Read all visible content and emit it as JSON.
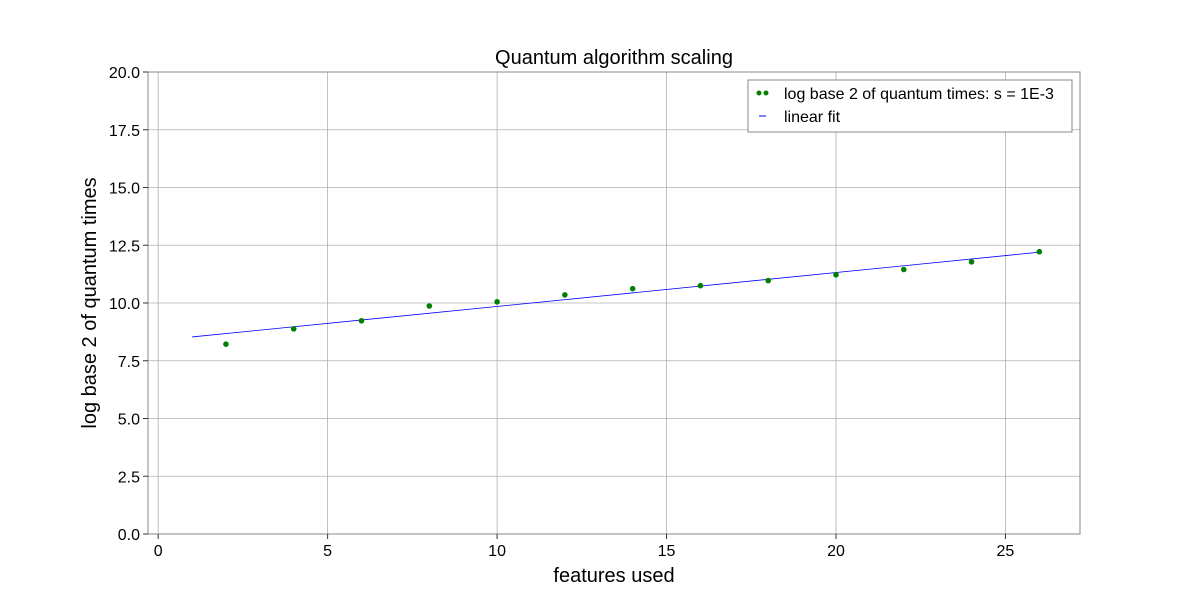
{
  "chart_data": {
    "type": "scatter",
    "title": "Quantum algorithm scaling",
    "xlabel": "features used",
    "ylabel": "log base 2 of quantum times",
    "xlim": [
      -0.3,
      27.2
    ],
    "ylim": [
      0,
      20
    ],
    "xticks": [
      0,
      5,
      10,
      15,
      20,
      25
    ],
    "yticks": [
      0,
      2.5,
      5,
      7.5,
      10,
      12.5,
      15,
      17.5,
      20
    ],
    "ytick_labels": [
      "0.0",
      "2.5",
      "5.0",
      "7.5",
      "10.0",
      "12.5",
      "15.0",
      "17.5",
      "20.0"
    ],
    "grid": true,
    "legend_position": "top-right",
    "series": [
      {
        "name": "log base 2 of quantum times: s = 1E-3",
        "kind": "points",
        "color": "#008000",
        "x": [
          2,
          4,
          6,
          8,
          10,
          12,
          14,
          16,
          18,
          20,
          22,
          24,
          26
        ],
        "y": [
          8.22,
          8.88,
          9.23,
          9.87,
          10.05,
          10.35,
          10.62,
          10.75,
          10.97,
          11.22,
          11.45,
          11.78,
          12.22
        ]
      },
      {
        "name": "linear fit",
        "kind": "line",
        "color": "#0000ff",
        "x": [
          1,
          26
        ],
        "y": [
          8.53,
          12.2
        ]
      }
    ]
  }
}
